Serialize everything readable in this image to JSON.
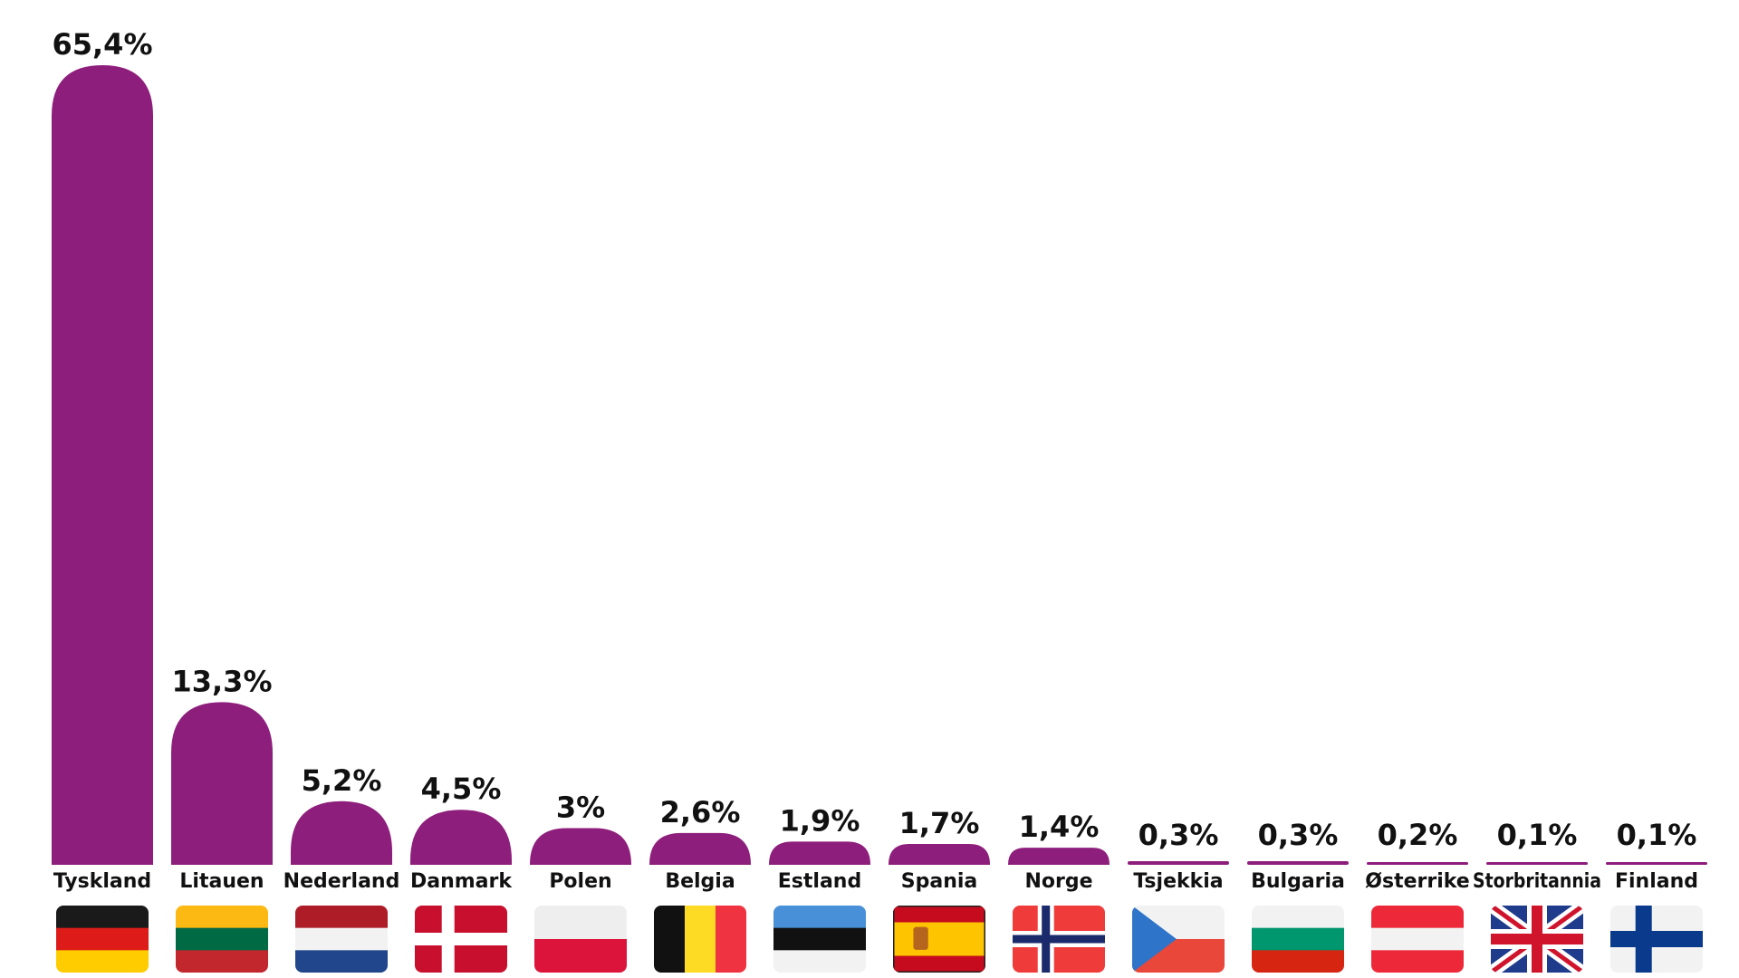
{
  "colors": {
    "bar": "#8E1E7B"
  },
  "chart_data": {
    "type": "bar",
    "categories": [
      "Tyskland",
      "Litauen",
      "Nederland",
      "Danmark",
      "Polen",
      "Belgia",
      "Estland",
      "Spania",
      "Norge",
      "Tsjekkia",
      "Bulgaria",
      "Østerrike",
      "Storbritannia",
      "Finland"
    ],
    "values": [
      65.4,
      13.3,
      5.2,
      4.5,
      3,
      2.6,
      1.9,
      1.7,
      1.4,
      0.3,
      0.3,
      0.2,
      0.1,
      0.1
    ],
    "value_labels": [
      "65,4%",
      "13,3%",
      "5,2%",
      "4,5%",
      "3%",
      "2,6%",
      "1,9%",
      "1,7%",
      "1,4%",
      "0,3%",
      "0,3%",
      "0,2%",
      "0,1%",
      "0,1%"
    ],
    "flags": [
      "germany-flag-icon",
      "lithuania-flag-icon",
      "netherlands-flag-icon",
      "denmark-flag-icon",
      "poland-flag-icon",
      "belgium-flag-icon",
      "estonia-flag-icon",
      "spain-flag-icon",
      "norway-flag-icon",
      "czechia-flag-icon",
      "bulgaria-flag-icon",
      "austria-flag-icon",
      "united-kingdom-flag-icon",
      "finland-flag-icon"
    ],
    "ylim": [
      0,
      65.4
    ],
    "grid": false,
    "legend": "none"
  }
}
